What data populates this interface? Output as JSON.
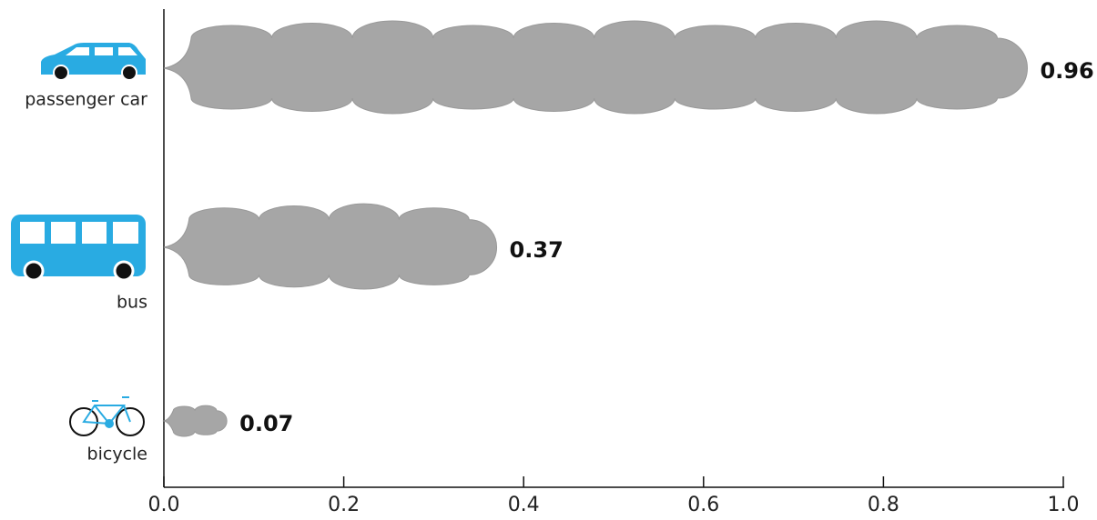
{
  "chart_data": {
    "type": "bar",
    "orientation": "horizontal",
    "categories": [
      "passenger car",
      "bus",
      "bicycle"
    ],
    "values": [
      0.96,
      0.37,
      0.07
    ],
    "color": "#a6a6a6",
    "xlim": [
      0,
      1
    ],
    "xticks": [
      {
        "value": 0,
        "label": "0.0"
      },
      0.2,
      0.4,
      0.6,
      0.8,
      {
        "value": 1,
        "label": "1.0"
      }
    ]
  }
}
